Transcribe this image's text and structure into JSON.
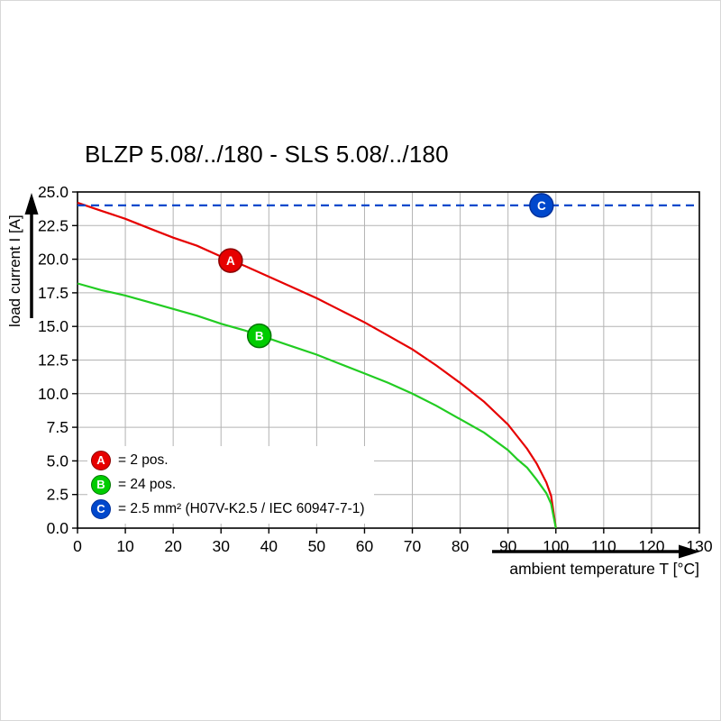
{
  "title": "BLZP 5.08/../180 - SLS 5.08/../180",
  "chart_data": {
    "type": "line",
    "title": "BLZP 5.08/../180 - SLS 5.08/../180",
    "xlabel": "ambient temperature T [°C]",
    "ylabel": "load current I [A]",
    "xlim": [
      0,
      130
    ],
    "ylim": [
      0,
      25
    ],
    "xticks": [
      0,
      10,
      20,
      30,
      40,
      50,
      60,
      70,
      80,
      90,
      100,
      110,
      120,
      130
    ],
    "yticks": [
      0,
      2.5,
      5,
      7.5,
      10,
      12.5,
      15,
      17.5,
      20,
      22.5,
      25
    ],
    "grid": true,
    "legend_position": "lower-left-inside",
    "series": [
      {
        "name": "A",
        "description": "2 pos.",
        "color": "#e60000",
        "style": "solid",
        "points": [
          [
            0,
            24.2
          ],
          [
            5,
            23.6
          ],
          [
            10,
            23.0
          ],
          [
            15,
            22.3
          ],
          [
            20,
            21.6
          ],
          [
            25,
            21.0
          ],
          [
            30,
            20.2
          ],
          [
            35,
            19.5
          ],
          [
            40,
            18.7
          ],
          [
            45,
            17.9
          ],
          [
            50,
            17.1
          ],
          [
            55,
            16.2
          ],
          [
            60,
            15.3
          ],
          [
            65,
            14.3
          ],
          [
            70,
            13.3
          ],
          [
            75,
            12.1
          ],
          [
            80,
            10.8
          ],
          [
            85,
            9.4
          ],
          [
            90,
            7.7
          ],
          [
            92,
            6.8
          ],
          [
            94,
            5.9
          ],
          [
            96,
            4.8
          ],
          [
            98,
            3.4
          ],
          [
            99,
            2.4
          ],
          [
            100,
            0
          ]
        ]
      },
      {
        "name": "B",
        "description": "24 pos.",
        "color": "#22cc22",
        "style": "solid",
        "points": [
          [
            0,
            18.2
          ],
          [
            5,
            17.7
          ],
          [
            10,
            17.3
          ],
          [
            15,
            16.8
          ],
          [
            20,
            16.3
          ],
          [
            25,
            15.8
          ],
          [
            30,
            15.2
          ],
          [
            35,
            14.7
          ],
          [
            40,
            14.1
          ],
          [
            45,
            13.5
          ],
          [
            50,
            12.9
          ],
          [
            55,
            12.2
          ],
          [
            60,
            11.5
          ],
          [
            65,
            10.8
          ],
          [
            70,
            10.0
          ],
          [
            75,
            9.1
          ],
          [
            80,
            8.1
          ],
          [
            85,
            7.1
          ],
          [
            90,
            5.8
          ],
          [
            92,
            5.1
          ],
          [
            94,
            4.5
          ],
          [
            96,
            3.6
          ],
          [
            98,
            2.6
          ],
          [
            99,
            1.8
          ],
          [
            100,
            0
          ]
        ]
      },
      {
        "name": "C",
        "description": "2.5 mm² (H07V-K2.5 / IEC 60947-7-1)",
        "color": "#0048cc",
        "style": "dashed",
        "points": [
          [
            0,
            24
          ],
          [
            130,
            24
          ]
        ]
      }
    ],
    "markers": [
      {
        "label": "A",
        "x": 32,
        "y": 19.9,
        "fill": "#e60000",
        "stroke": "#8b0000"
      },
      {
        "label": "B",
        "x": 38,
        "y": 14.3,
        "fill": "#00cc00",
        "stroke": "#007700"
      },
      {
        "label": "C",
        "x": 97,
        "y": 24.0,
        "fill": "#0048cc",
        "stroke": "#002f99"
      }
    ],
    "legend": [
      {
        "letter": "A",
        "label": "= 2 pos.",
        "color": "#e60000",
        "stroke": "#8b0000"
      },
      {
        "letter": "B",
        "label": "= 24 pos.",
        "color": "#00cc00",
        "stroke": "#007700"
      },
      {
        "letter": "C",
        "label": "= 2.5 mm² (H07V-K2.5 / IEC 60947-7-1)",
        "color": "#0048cc",
        "stroke": "#002f99"
      }
    ]
  }
}
